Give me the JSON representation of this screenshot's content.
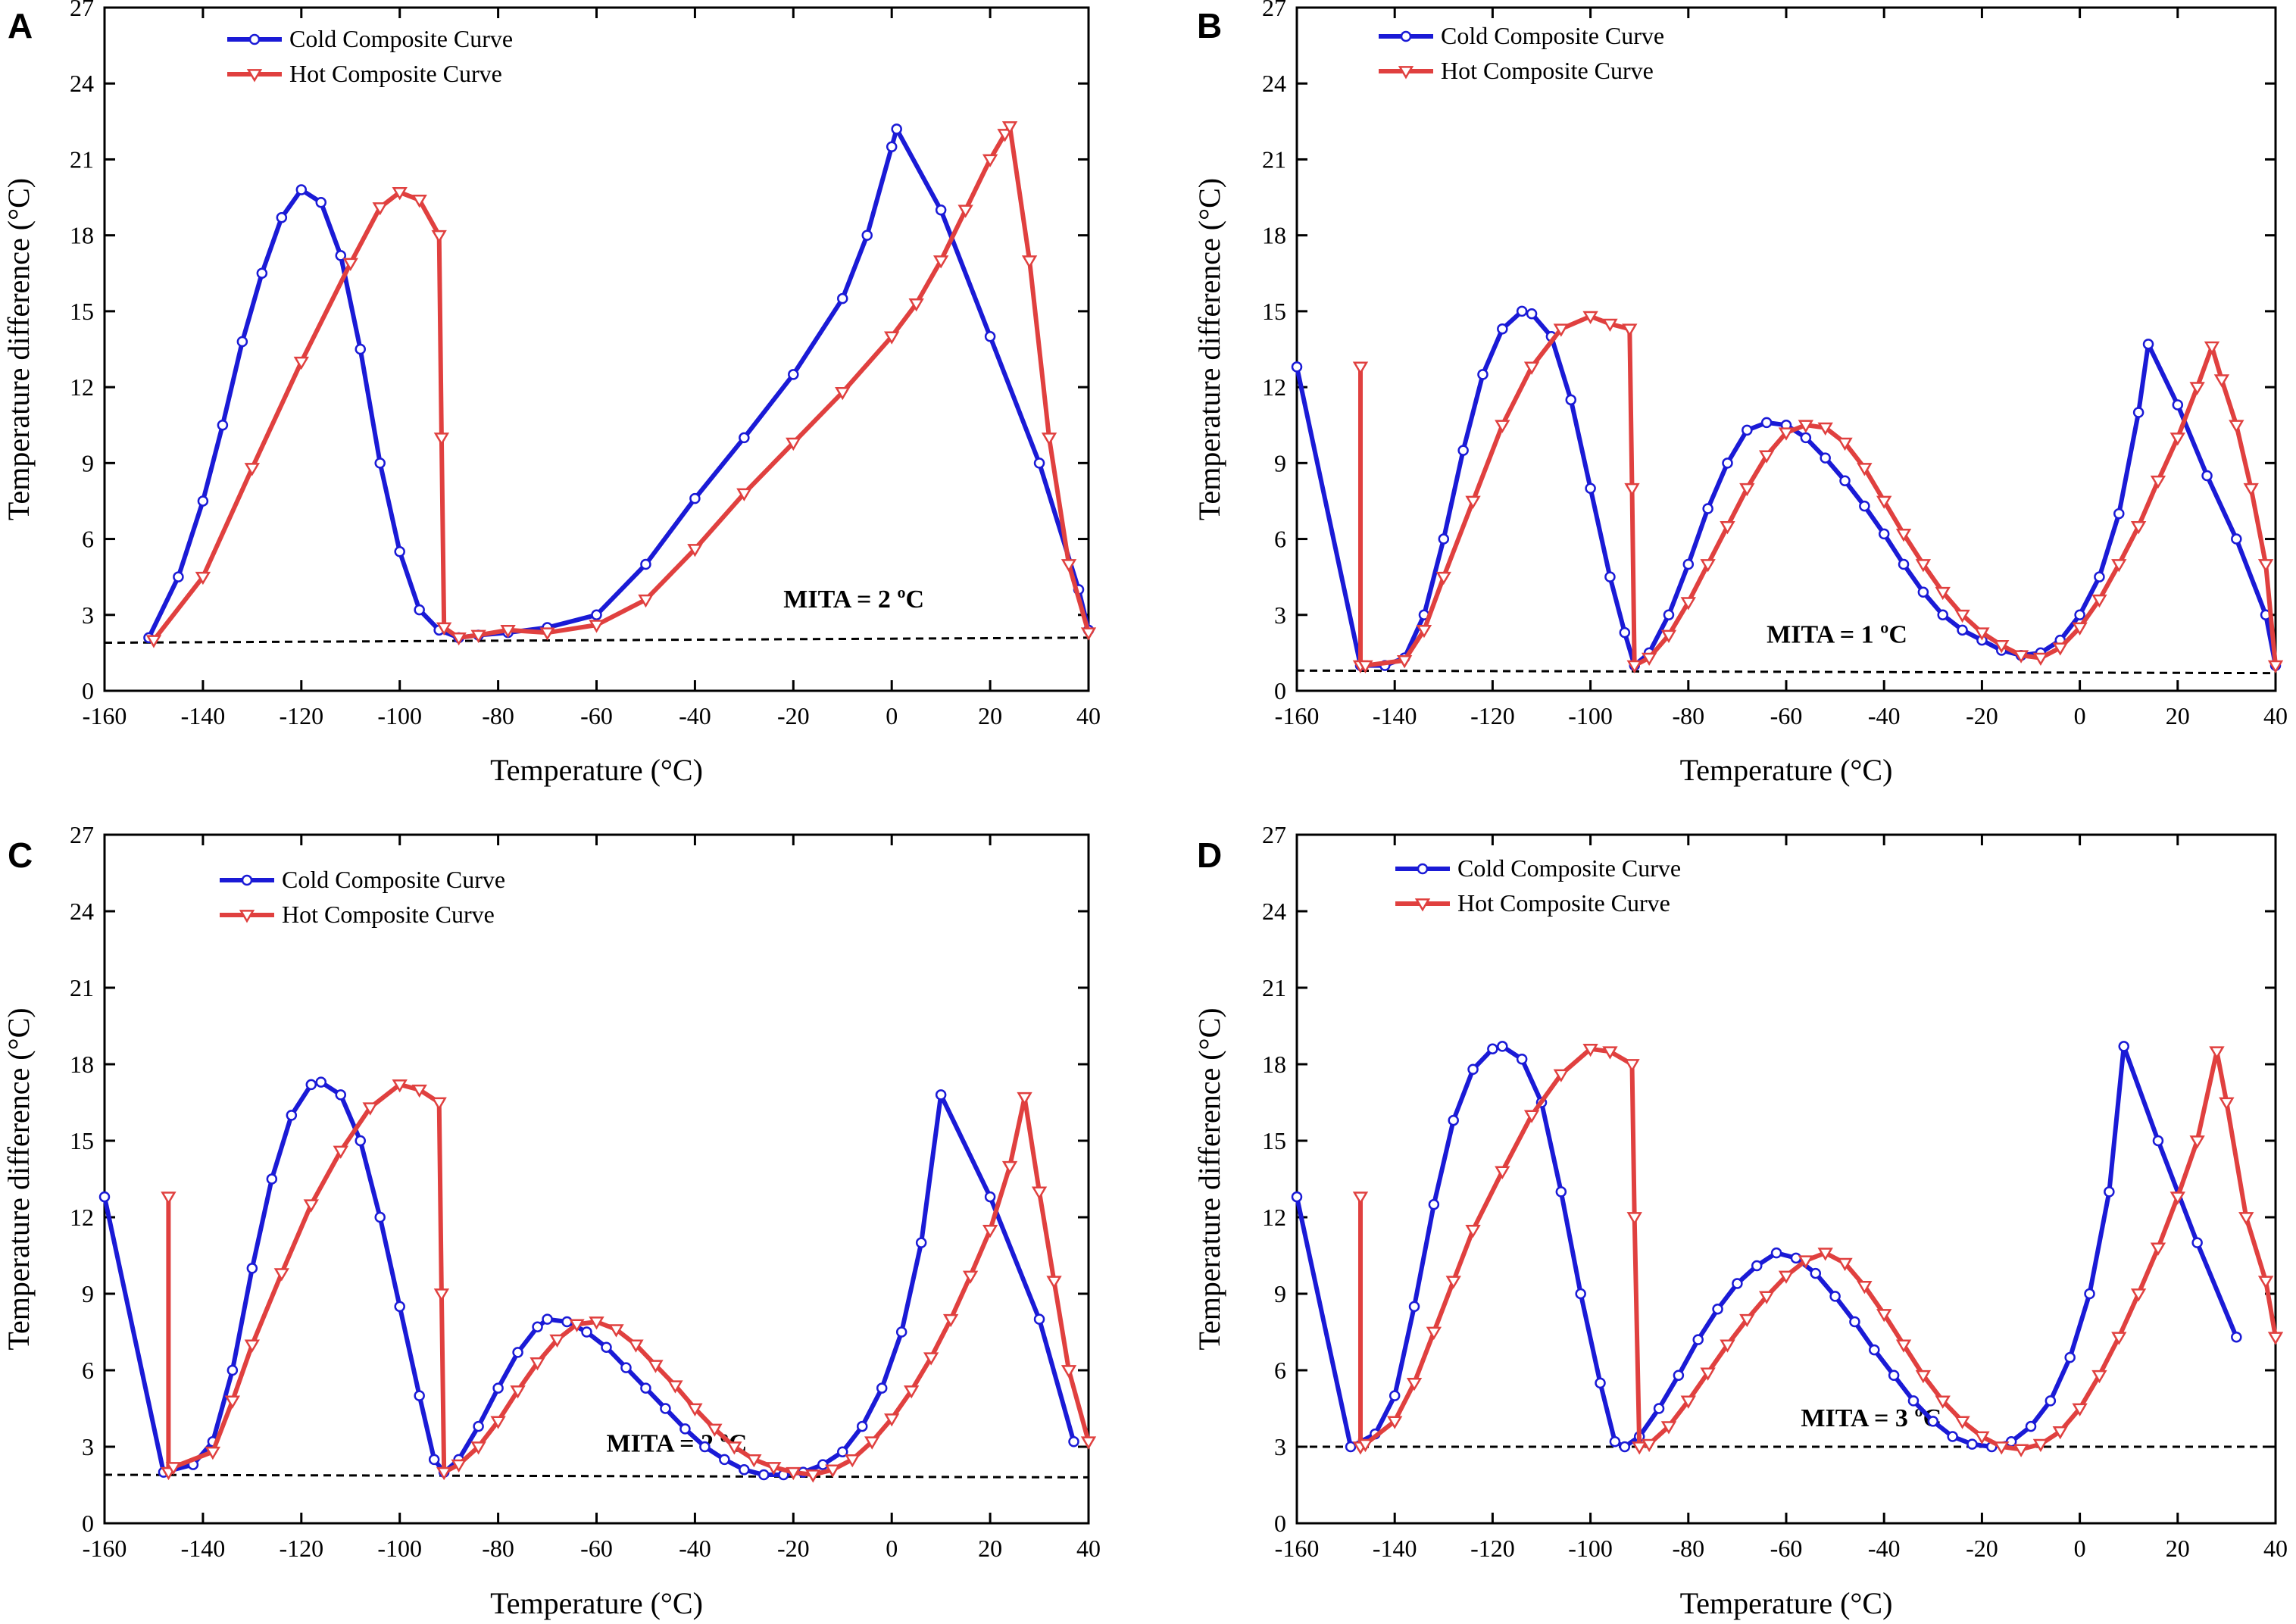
{
  "colors": {
    "cold": "#1a1ad6",
    "hot": "#e0403f",
    "axis": "#000000"
  },
  "chart_data": [
    {
      "panel": "A",
      "type": "line",
      "xlabel": "Temperature (°C)",
      "ylabel": "Temperature difference (°C)",
      "xlim": [
        -160,
        40
      ],
      "ylim": [
        0,
        27
      ],
      "xticks": [
        -160,
        -140,
        -120,
        -100,
        -80,
        -60,
        -40,
        -20,
        0,
        20,
        40
      ],
      "yticks": [
        0,
        3,
        6,
        9,
        12,
        15,
        18,
        21,
        24,
        27
      ],
      "legend": [
        "Cold Composite Curve",
        "Hot Composite Curve"
      ],
      "legend_position": "top-left",
      "mita_label": "MITA = 2 ºC",
      "mita_line": [
        [
          -160,
          1.9
        ],
        [
          40,
          2.1
        ]
      ],
      "series": [
        {
          "name": "Cold Composite Curve",
          "x": [
            -151,
            -145,
            -140,
            -136,
            -132,
            -128,
            -124,
            -120,
            -116,
            -112,
            -108,
            -104,
            -100,
            -96,
            -92,
            -88,
            -84,
            -78,
            -70,
            -60,
            -50,
            -40,
            -30,
            -20,
            -10,
            -5,
            0,
            1,
            10,
            20,
            30,
            38,
            40
          ],
          "y": [
            2.1,
            4.5,
            7.5,
            10.5,
            13.8,
            16.5,
            18.7,
            19.8,
            19.3,
            17.2,
            13.5,
            9.0,
            5.5,
            3.2,
            2.4,
            2.1,
            2.2,
            2.3,
            2.5,
            3.0,
            5.0,
            7.6,
            10.0,
            12.5,
            15.5,
            18.0,
            21.5,
            22.2,
            19.0,
            14.0,
            9.0,
            4.0,
            2.4
          ]
        },
        {
          "name": "Hot Composite Curve",
          "x": [
            -150,
            -140,
            -130,
            -120,
            -110,
            -104,
            -100,
            -96,
            -92,
            -91.5,
            -91,
            -88,
            -84,
            -78,
            -70,
            -60,
            -50,
            -40,
            -30,
            -20,
            -10,
            0,
            5,
            10,
            15,
            20,
            23,
            24,
            28,
            32,
            36,
            40
          ],
          "y": [
            2.0,
            4.5,
            8.8,
            13.0,
            16.9,
            19.1,
            19.7,
            19.4,
            18.0,
            10.0,
            2.5,
            2.1,
            2.2,
            2.4,
            2.3,
            2.6,
            3.6,
            5.6,
            7.8,
            9.8,
            11.8,
            14.0,
            15.3,
            17.0,
            19.0,
            21.0,
            22.0,
            22.3,
            17.0,
            10.0,
            5.0,
            2.3
          ]
        }
      ]
    },
    {
      "panel": "B",
      "type": "line",
      "xlabel": "Temperature (°C)",
      "ylabel": "Temperature difference (°C)",
      "xlim": [
        -160,
        40
      ],
      "ylim": [
        0,
        27
      ],
      "xticks": [
        -160,
        -140,
        -120,
        -100,
        -80,
        -60,
        -40,
        -20,
        0,
        20,
        40
      ],
      "yticks": [
        0,
        3,
        6,
        9,
        12,
        15,
        18,
        21,
        24,
        27
      ],
      "legend": [
        "Cold Composite Curve",
        "Hot Composite Curve"
      ],
      "legend_position": "top-left",
      "mita_label": "MITA = 1 ºC",
      "mita_line": [
        [
          -160,
          0.8
        ],
        [
          40,
          0.7
        ]
      ],
      "series": [
        {
          "name": "Cold Composite Curve",
          "x": [
            -160,
            -147,
            -142,
            -138,
            -134,
            -130,
            -126,
            -122,
            -118,
            -114,
            -112,
            -108,
            -104,
            -100,
            -96,
            -93,
            -91,
            -88,
            -84,
            -80,
            -76,
            -72,
            -68,
            -64,
            -60,
            -56,
            -52,
            -48,
            -44,
            -40,
            -36,
            -32,
            -28,
            -24,
            -20,
            -16,
            -12,
            -8,
            -4,
            0,
            4,
            8,
            12,
            14,
            20,
            26,
            32,
            38,
            40
          ],
          "y": [
            12.8,
            1.0,
            1.0,
            1.3,
            3.0,
            6.0,
            9.5,
            12.5,
            14.3,
            15.0,
            14.9,
            14.0,
            11.5,
            8.0,
            4.5,
            2.3,
            1.0,
            1.5,
            3.0,
            5.0,
            7.2,
            9.0,
            10.3,
            10.6,
            10.5,
            10.0,
            9.2,
            8.3,
            7.3,
            6.2,
            5.0,
            3.9,
            3.0,
            2.4,
            2.0,
            1.6,
            1.4,
            1.5,
            2.0,
            3.0,
            4.5,
            7.0,
            11.0,
            13.7,
            11.3,
            8.5,
            6.0,
            3.0,
            1.0
          ]
        },
        {
          "name": "Hot Composite Curve",
          "x": [
            -147,
            -147,
            -146,
            -138,
            -134,
            -130,
            -124,
            -118,
            -112,
            -106,
            -100,
            -96,
            -92,
            -91.5,
            -91,
            -88,
            -84,
            -80,
            -76,
            -72,
            -68,
            -64,
            -60,
            -56,
            -52,
            -48,
            -44,
            -40,
            -36,
            -32,
            -28,
            -24,
            -20,
            -16,
            -12,
            -8,
            -4,
            0,
            4,
            8,
            12,
            16,
            20,
            24,
            27,
            29,
            32,
            35,
            38,
            40
          ],
          "y": [
            12.8,
            1.0,
            1.0,
            1.2,
            2.4,
            4.5,
            7.5,
            10.5,
            12.8,
            14.3,
            14.8,
            14.5,
            14.3,
            8.0,
            1.0,
            1.3,
            2.2,
            3.5,
            5.0,
            6.5,
            8.0,
            9.3,
            10.2,
            10.5,
            10.4,
            9.8,
            8.8,
            7.5,
            6.2,
            5.0,
            3.9,
            3.0,
            2.3,
            1.8,
            1.4,
            1.3,
            1.7,
            2.5,
            3.6,
            5.0,
            6.5,
            8.3,
            10.0,
            12.0,
            13.6,
            12.3,
            10.5,
            8.0,
            5.0,
            1.0
          ]
        }
      ]
    },
    {
      "panel": "C",
      "type": "line",
      "xlabel": "Temperature (°C)",
      "ylabel": "Temperature difference (°C)",
      "xlim": [
        -160,
        40
      ],
      "ylim": [
        0,
        27
      ],
      "xticks": [
        -160,
        -140,
        -120,
        -100,
        -80,
        -60,
        -40,
        -20,
        0,
        20,
        40
      ],
      "yticks": [
        0,
        3,
        6,
        9,
        12,
        15,
        18,
        21,
        24,
        27
      ],
      "legend": [
        "Cold Composite Curve",
        "Hot Composite Curve"
      ],
      "legend_position": "top-left",
      "mita_label": "MITA = 2 ºC",
      "mita_line": [
        [
          -160,
          1.9
        ],
        [
          40,
          1.8
        ]
      ],
      "series": [
        {
          "name": "Cold Composite Curve",
          "x": [
            -160,
            -148,
            -142,
            -138,
            -134,
            -130,
            -126,
            -122,
            -118,
            -116,
            -112,
            -108,
            -104,
            -100,
            -96,
            -93,
            -91,
            -88,
            -84,
            -80,
            -76,
            -72,
            -70,
            -66,
            -62,
            -58,
            -54,
            -50,
            -46,
            -42,
            -38,
            -34,
            -30,
            -26,
            -22,
            -18,
            -14,
            -10,
            -6,
            -2,
            2,
            6,
            10,
            20,
            30,
            37
          ],
          "y": [
            12.8,
            2.0,
            2.3,
            3.2,
            6.0,
            10.0,
            13.5,
            16.0,
            17.2,
            17.3,
            16.8,
            15.0,
            12.0,
            8.5,
            5.0,
            2.5,
            2.0,
            2.5,
            3.8,
            5.3,
            6.7,
            7.7,
            8.0,
            7.9,
            7.5,
            6.9,
            6.1,
            5.3,
            4.5,
            3.7,
            3.0,
            2.5,
            2.1,
            1.9,
            1.9,
            2.0,
            2.3,
            2.8,
            3.8,
            5.3,
            7.5,
            11.0,
            16.8,
            12.8,
            8.0,
            3.2
          ]
        },
        {
          "name": "Hot Composite Curve",
          "x": [
            -147,
            -147,
            -146,
            -138,
            -134,
            -130,
            -124,
            -118,
            -112,
            -106,
            -100,
            -96,
            -92,
            -91.5,
            -91,
            -88,
            -84,
            -80,
            -76,
            -72,
            -68,
            -64,
            -60,
            -56,
            -52,
            -48,
            -44,
            -40,
            -36,
            -32,
            -28,
            -24,
            -20,
            -16,
            -12,
            -8,
            -4,
            0,
            4,
            8,
            12,
            16,
            20,
            24,
            27,
            30,
            33,
            36,
            40
          ],
          "y": [
            12.8,
            2.0,
            2.2,
            2.8,
            4.8,
            7.0,
            9.8,
            12.5,
            14.6,
            16.3,
            17.2,
            17.0,
            16.5,
            9.0,
            2.0,
            2.3,
            3.0,
            4.0,
            5.2,
            6.3,
            7.2,
            7.8,
            7.9,
            7.6,
            7.0,
            6.2,
            5.4,
            4.5,
            3.7,
            3.0,
            2.5,
            2.2,
            2.0,
            1.9,
            2.1,
            2.5,
            3.2,
            4.1,
            5.2,
            6.5,
            8.0,
            9.7,
            11.5,
            14.0,
            16.7,
            13.0,
            9.5,
            6.0,
            3.2
          ]
        }
      ]
    },
    {
      "panel": "D",
      "type": "line",
      "xlabel": "Temperature (°C)",
      "ylabel": "Temperature difference (°C)",
      "xlim": [
        -160,
        40
      ],
      "ylim": [
        0,
        27
      ],
      "xticks": [
        -160,
        -140,
        -120,
        -100,
        -80,
        -60,
        -40,
        -20,
        0,
        20,
        40
      ],
      "yticks": [
        0,
        3,
        6,
        9,
        12,
        15,
        18,
        21,
        24,
        27
      ],
      "legend": [
        "Cold Composite Curve",
        "Hot Composite Curve"
      ],
      "legend_position": "top-left",
      "mita_label": "MITA = 3 ºC",
      "mita_line": [
        [
          -160,
          3.0
        ],
        [
          40,
          3.0
        ]
      ],
      "series": [
        {
          "name": "Cold Composite Curve",
          "x": [
            -160,
            -149,
            -144,
            -140,
            -136,
            -132,
            -128,
            -124,
            -120,
            -118,
            -114,
            -110,
            -106,
            -102,
            -98,
            -95,
            -93,
            -90,
            -86,
            -82,
            -78,
            -74,
            -70,
            -66,
            -62,
            -58,
            -54,
            -50,
            -46,
            -42,
            -38,
            -34,
            -30,
            -26,
            -22,
            -18,
            -14,
            -10,
            -6,
            -2,
            2,
            6,
            9,
            16,
            24,
            32
          ],
          "y": [
            12.8,
            3.0,
            3.5,
            5.0,
            8.5,
            12.5,
            15.8,
            17.8,
            18.6,
            18.7,
            18.2,
            16.5,
            13.0,
            9.0,
            5.5,
            3.2,
            3.0,
            3.4,
            4.5,
            5.8,
            7.2,
            8.4,
            9.4,
            10.1,
            10.6,
            10.4,
            9.8,
            8.9,
            7.9,
            6.8,
            5.8,
            4.8,
            4.0,
            3.4,
            3.1,
            3.0,
            3.2,
            3.8,
            4.8,
            6.5,
            9.0,
            13.0,
            18.7,
            15.0,
            11.0,
            7.3
          ]
        },
        {
          "name": "Hot Composite Curve",
          "x": [
            -147,
            -147,
            -146,
            -140,
            -136,
            -132,
            -128,
            -124,
            -118,
            -112,
            -106,
            -100,
            -96,
            -91.5,
            -91,
            -90,
            -88,
            -84,
            -80,
            -76,
            -72,
            -68,
            -64,
            -60,
            -56,
            -52,
            -48,
            -44,
            -40,
            -36,
            -32,
            -28,
            -24,
            -20,
            -16,
            -12,
            -8,
            -4,
            0,
            4,
            8,
            12,
            16,
            20,
            24,
            28,
            30,
            34,
            38,
            40
          ],
          "y": [
            12.8,
            3.0,
            3.1,
            4.0,
            5.5,
            7.5,
            9.5,
            11.5,
            13.8,
            16.0,
            17.6,
            18.6,
            18.5,
            18.0,
            12.0,
            3.0,
            3.1,
            3.8,
            4.8,
            5.9,
            7.0,
            8.0,
            8.9,
            9.7,
            10.3,
            10.6,
            10.2,
            9.3,
            8.2,
            7.0,
            5.8,
            4.8,
            4.0,
            3.4,
            3.0,
            2.9,
            3.1,
            3.6,
            4.5,
            5.8,
            7.3,
            9.0,
            10.8,
            12.8,
            15.0,
            18.5,
            16.5,
            12.0,
            9.5,
            7.3
          ]
        }
      ]
    }
  ]
}
